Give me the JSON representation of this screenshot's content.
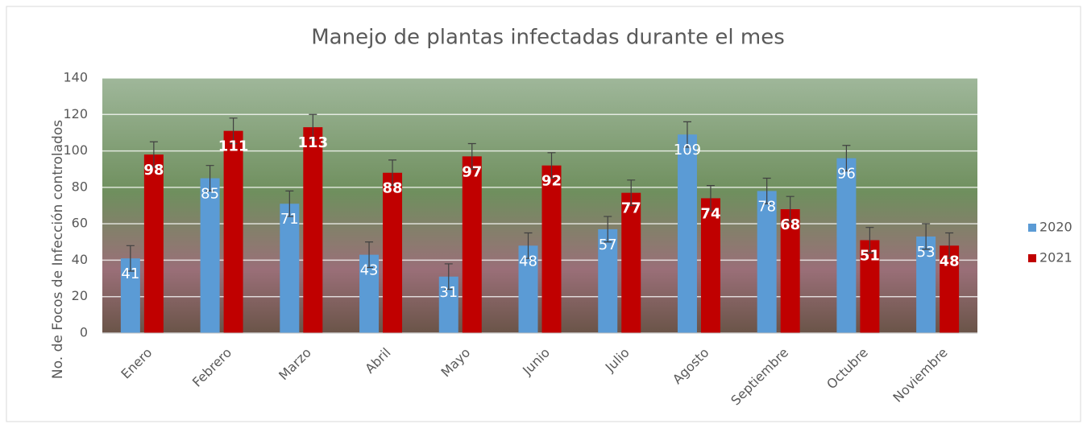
{
  "chart_data": {
    "type": "bar",
    "title": "Manejo de plantas infectadas durante el mes",
    "y_label": "No. de Focos de Infección controlados",
    "categories": [
      "Enero",
      "Febrero",
      "Marzo",
      "Abril",
      "Mayo",
      "Junio",
      "Julio",
      "Agosto",
      "Septiembre",
      "Octubre",
      "Noviembre"
    ],
    "series": [
      {
        "name": "2020",
        "color": "#5b9bd5",
        "values": [
          41,
          85,
          71,
          43,
          31,
          48,
          57,
          109,
          78,
          96,
          53
        ],
        "errors": [
          7,
          7,
          7,
          7,
          7,
          7,
          7,
          7,
          7,
          7,
          7
        ]
      },
      {
        "name": "2021",
        "color": "#c00000",
        "values": [
          98,
          111,
          113,
          88,
          97,
          92,
          77,
          74,
          68,
          51,
          48
        ],
        "errors": [
          7,
          7,
          7,
          7,
          7,
          7,
          7,
          7,
          7,
          7,
          7
        ]
      }
    ],
    "ylim": [
      0,
      140
    ],
    "yticks": [
      0,
      20,
      40,
      60,
      80,
      100,
      120,
      140
    ],
    "grid": true,
    "legend": "right"
  }
}
